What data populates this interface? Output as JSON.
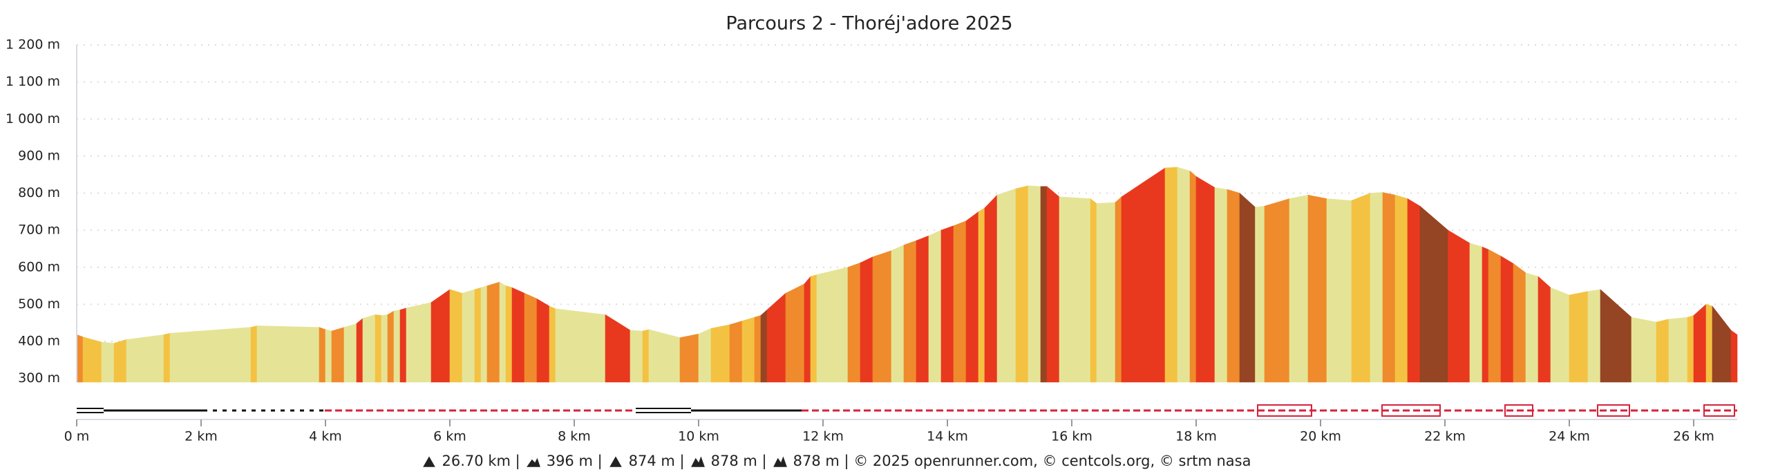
{
  "chart_data": {
    "type": "area",
    "title": "Parcours 2 - Thoréj'adore 2025",
    "x": [
      0,
      0.1,
      0.4,
      0.6,
      0.8,
      1.4,
      1.5,
      2.8,
      2.9,
      3.9,
      4.0,
      4.1,
      4.3,
      4.5,
      4.6,
      4.8,
      4.9,
      5.0,
      5.1,
      5.2,
      5.3,
      5.7,
      6.0,
      6.2,
      6.4,
      6.5,
      6.6,
      6.8,
      6.9,
      7.0,
      7.2,
      7.4,
      7.6,
      7.7,
      8.5,
      8.9,
      9.1,
      9.2,
      9.7,
      10.0,
      10.2,
      10.5,
      10.7,
      10.9,
      11.0,
      11.1,
      11.4,
      11.7,
      11.8,
      11.9,
      12.4,
      12.6,
      12.8,
      13.1,
      13.3,
      13.5,
      13.7,
      13.9,
      14.1,
      14.3,
      14.5,
      14.6,
      14.8,
      15.1,
      15.3,
      15.5,
      15.6,
      15.8,
      16.3,
      16.4,
      16.7,
      16.8,
      17.5,
      17.7,
      17.9,
      18.0,
      18.3,
      18.5,
      18.7,
      18.95,
      19.1,
      19.5,
      19.8,
      20.1,
      20.5,
      20.8,
      21.0,
      21.2,
      21.4,
      21.6,
      22.05,
      22.4,
      22.6,
      22.7,
      22.9,
      23.1,
      23.3,
      23.5,
      23.7,
      24.0,
      24.3,
      24.5,
      25.0,
      25.4,
      25.6,
      25.9,
      26.0,
      26.2,
      26.3,
      26.6,
      26.7
    ],
    "values": [
      418,
      412,
      398,
      395,
      405,
      418,
      422,
      438,
      442,
      438,
      432,
      428,
      438,
      448,
      462,
      472,
      470,
      472,
      482,
      485,
      490,
      505,
      540,
      530,
      540,
      545,
      550,
      560,
      550,
      545,
      530,
      515,
      495,
      488,
      472,
      430,
      428,
      432,
      410,
      420,
      435,
      445,
      455,
      465,
      470,
      485,
      530,
      555,
      575,
      580,
      600,
      612,
      628,
      645,
      660,
      672,
      685,
      700,
      712,
      725,
      750,
      760,
      795,
      812,
      820,
      818,
      818,
      790,
      785,
      772,
      775,
      790,
      868,
      870,
      860,
      845,
      815,
      810,
      800,
      762,
      765,
      785,
      795,
      785,
      780,
      800,
      802,
      795,
      785,
      765,
      700,
      665,
      655,
      648,
      630,
      610,
      585,
      575,
      545,
      525,
      535,
      540,
      465,
      452,
      460,
      465,
      470,
      500,
      495,
      430,
      418
    ],
    "colors": [
      "#ef8b2c",
      "#f4c242",
      "#e5e496",
      "#f4c242",
      "#e5e496",
      "#f4c242",
      "#e5e496",
      "#f4c242",
      "#e5e496",
      "#ef8b2c",
      "#e5e496",
      "#ef8b2c",
      "#e5e496",
      "#e8391e",
      "#e5e496",
      "#f4c242",
      "#e5e496",
      "#ef8b2c",
      "#e5e496",
      "#e8391e",
      "#e5e496",
      "#e8391e",
      "#f4c242",
      "#e5e496",
      "#f4c242",
      "#e5e496",
      "#ef8b2c",
      "#e5e496",
      "#f4c242",
      "#e8391e",
      "#ef8b2c",
      "#e8391e",
      "#f4c242",
      "#e5e496",
      "#e8391e",
      "#e5e496",
      "#f4c242",
      "#e5e496",
      "#ef8b2c",
      "#e5e496",
      "#f4c242",
      "#ef8b2c",
      "#f4c242",
      "#ef8b2c",
      "#954523",
      "#e8391e",
      "#ef8b2c",
      "#e8391e",
      "#f4c242",
      "#e5e496",
      "#ef8b2c",
      "#e8391e",
      "#ef8b2c",
      "#e5e496",
      "#ef8b2c",
      "#e8391e",
      "#e5e496",
      "#e8391e",
      "#ef8b2c",
      "#e8391e",
      "#f4c242",
      "#e8391e",
      "#e5e496",
      "#f4c242",
      "#e5e496",
      "#954523",
      "#e8391e",
      "#e5e496",
      "#f4c242",
      "#e5e496",
      "#ef8b2c",
      "#e8391e",
      "#f4c242",
      "#e5e496",
      "#ef8b2c",
      "#e8391e",
      "#e5e496",
      "#ef8b2c",
      "#954523",
      "#e5e496",
      "#ef8b2c",
      "#e5e496",
      "#ef8b2c",
      "#e5e496",
      "#f4c242",
      "#e5e496",
      "#ef8b2c",
      "#f4c242",
      "#e8391e",
      "#954523",
      "#e8391e",
      "#e5e496",
      "#e8391e",
      "#ef8b2c",
      "#e8391e",
      "#ef8b2c",
      "#e5e496",
      "#e8391e",
      "#e5e496",
      "#f4c242",
      "#e5e496",
      "#954523",
      "#e5e496",
      "#f4c242",
      "#e5e496",
      "#f4c242",
      "#e8391e",
      "#f4c242",
      "#954523",
      "#e8391e"
    ],
    "xlim": [
      0,
      26.7
    ],
    "ylim": [
      290,
      1200
    ],
    "yticks": [
      {
        "value": 300,
        "label": "300 m"
      },
      {
        "value": 400,
        "label": "400 m"
      },
      {
        "value": 500,
        "label": "500 m"
      },
      {
        "value": 600,
        "label": "600 m"
      },
      {
        "value": 700,
        "label": "700 m"
      },
      {
        "value": 800,
        "label": "800 m"
      },
      {
        "value": 900,
        "label": "900 m"
      },
      {
        "value": 1000,
        "label": "1 000 m"
      },
      {
        "value": 1100,
        "label": "1 100 m"
      },
      {
        "value": 1200,
        "label": "1 200 m"
      }
    ],
    "xticks": [
      {
        "value": 0,
        "label": "0 m"
      },
      {
        "value": 2,
        "label": "2 km"
      },
      {
        "value": 4,
        "label": "4 km"
      },
      {
        "value": 6,
        "label": "6 km"
      },
      {
        "value": 8,
        "label": "8 km"
      },
      {
        "value": 10,
        "label": "10 km"
      },
      {
        "value": 12,
        "label": "12 km"
      },
      {
        "value": 14,
        "label": "14 km"
      },
      {
        "value": 16,
        "label": "16 km"
      },
      {
        "value": 18,
        "label": "18 km"
      },
      {
        "value": 20,
        "label": "20 km"
      },
      {
        "value": 22,
        "label": "22 km"
      },
      {
        "value": 24,
        "label": "24 km"
      },
      {
        "value": 26,
        "label": "26 km"
      }
    ],
    "grid": true,
    "footer": [
      "26.70 km |",
      "396 m |",
      "874 m |",
      "878 m |",
      "878 m | © 2025 openrunner.com, © centcols.org, © srtm nasa"
    ]
  }
}
